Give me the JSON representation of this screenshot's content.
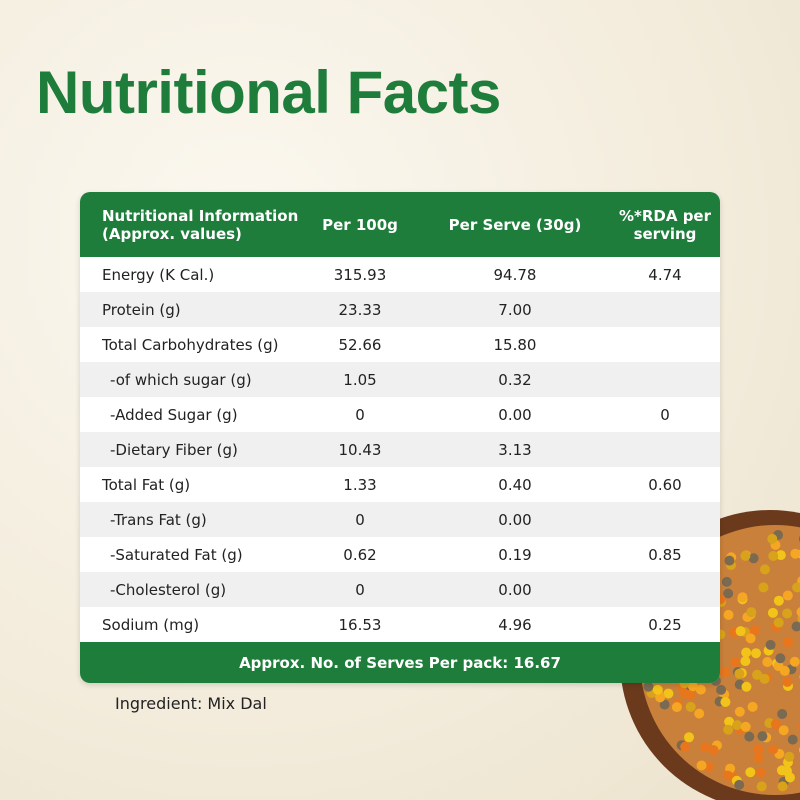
{
  "title": "Nutritional Facts",
  "table": {
    "header": [
      "Nutritional Information (Approx. values)",
      "Per 100g",
      "Per Serve (30g)",
      "%*RDA per serving"
    ],
    "rows": [
      {
        "label": "Energy (K Cal.)",
        "per100g": "315.93",
        "perServe": "94.78",
        "rda": "4.74"
      },
      {
        "label": "Protein (g)",
        "per100g": "23.33",
        "perServe": "7.00"
      },
      {
        "label": "Total Carbohydrates (g)",
        "per100g": "52.66",
        "perServe": "15.80"
      },
      {
        "label": "-of which sugar (g)",
        "per100g": "1.05",
        "perServe": "0.32",
        "indent": true
      },
      {
        "label": "-Added Sugar (g)",
        "per100g": "0",
        "perServe": "0.00",
        "rda": "0",
        "indent": true
      },
      {
        "label": "-Dietary Fiber (g)",
        "per100g": "10.43",
        "perServe": "3.13",
        "indent": true
      },
      {
        "label": "Total Fat (g)",
        "per100g": "1.33",
        "perServe": "0.40",
        "rda": "0.60"
      },
      {
        "label": "-Trans Fat (g)",
        "per100g": "0",
        "perServe": "0.00",
        "indent": true
      },
      {
        "label": "-Saturated Fat (g)",
        "per100g": "0.62",
        "perServe": "0.19",
        "rda": "0.85",
        "indent": true
      },
      {
        "label": "-Cholesterol (g)",
        "per100g": "0",
        "perServe": "0.00",
        "indent": true
      },
      {
        "label": "Sodium (mg)",
        "per100g": "16.53",
        "perServe": "4.96",
        "rda": "0.25"
      }
    ],
    "footer": "Approx. No. of Serves Per pack: 16.67"
  },
  "ingredient": "Ingredient: Mix Dal"
}
